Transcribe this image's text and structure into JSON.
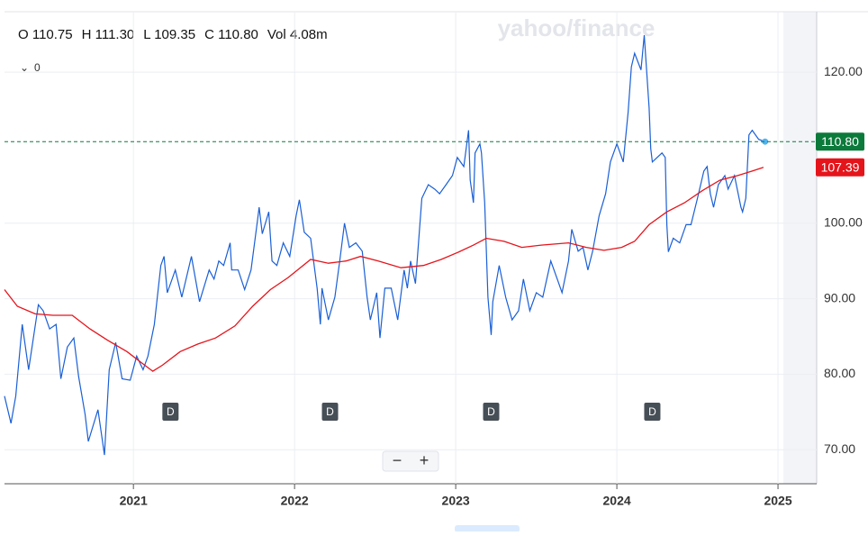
{
  "chart_data": {
    "type": "line",
    "header": [
      "O 110.75",
      "H 111.30",
      "L 109.35",
      "C 110.80",
      "Vol 4.08m"
    ],
    "watermark": "yahoo/finance",
    "indicator_count": "0",
    "controls": [
      "−",
      "+"
    ],
    "xlim": [
      2020.2,
      2025.24
    ],
    "ylim": [
      65.5,
      128
    ],
    "xticks": [
      {
        "value": 2021,
        "label": "2021"
      },
      {
        "value": 2022,
        "label": "2022"
      },
      {
        "value": 2023,
        "label": "2023"
      },
      {
        "value": 2024,
        "label": "2024"
      },
      {
        "value": 2025,
        "label": "2025"
      }
    ],
    "yticks": [
      {
        "value": 70,
        "label": "70.00"
      },
      {
        "value": 80,
        "label": "80.00"
      },
      {
        "value": 90,
        "label": "90.00"
      },
      {
        "value": 100,
        "label": "100.00"
      },
      {
        "value": 120,
        "label": "120.00"
      }
    ],
    "grid": true,
    "series": [
      {
        "color": "#1a5fd6",
        "x": [
          2020.2,
          2020.24,
          2020.27,
          2020.31,
          2020.35,
          2020.41,
          2020.44,
          2020.48,
          2020.52,
          2020.55,
          2020.59,
          2020.63,
          2020.66,
          2020.7,
          2020.72,
          2020.78,
          2020.82,
          2020.85,
          2020.89,
          2020.93,
          2020.98,
          2021.02,
          2021.06,
          2021.09,
          2021.13,
          2021.17,
          2021.19,
          2021.21,
          2021.26,
          2021.3,
          2021.36,
          2021.41,
          2021.47,
          2021.5,
          2021.53,
          2021.56,
          2021.6,
          2021.61,
          2021.65,
          2021.69,
          2021.73,
          2021.77,
          2021.78,
          2021.8,
          2021.84,
          2021.86,
          2021.89,
          2021.93,
          2021.97,
          2022.01,
          2022.03,
          2022.06,
          2022.1,
          2022.14,
          2022.16,
          2022.17,
          2022.21,
          2022.25,
          2022.28,
          2022.31,
          2022.34,
          2022.38,
          2022.42,
          2022.45,
          2022.47,
          2022.51,
          2022.53,
          2022.56,
          2022.6,
          2022.64,
          2022.68,
          2022.7,
          2022.72,
          2022.75,
          2022.79,
          2022.83,
          2022.87,
          2022.9,
          2022.94,
          2022.98,
          2023.01,
          2023.05,
          2023.08,
          2023.09,
          2023.11,
          2023.12,
          2023.15,
          2023.16,
          2023.18,
          2023.2,
          2023.22,
          2023.23,
          2023.27,
          2023.31,
          2023.35,
          2023.39,
          2023.42,
          2023.46,
          2023.5,
          2023.54,
          2023.59,
          2023.63,
          2023.66,
          2023.7,
          2023.72,
          2023.76,
          2023.79,
          2023.82,
          2023.85,
          2023.89,
          2023.93,
          2023.96,
          2024.0,
          2024.04,
          2024.07,
          2024.09,
          2024.11,
          2024.15,
          2024.17,
          2024.2,
          2024.21,
          2024.22,
          2024.28,
          2024.3,
          2024.31,
          2024.32,
          2024.35,
          2024.39,
          2024.43,
          2024.46,
          2024.5,
          2024.54,
          2024.56,
          2024.58,
          2024.6,
          2024.63,
          2024.67,
          2024.69,
          2024.73,
          2024.77,
          2024.78,
          2024.8,
          2024.82,
          2024.84,
          2024.88,
          2024.92
        ],
        "values": [
          77.1,
          73.5,
          77.1,
          86.6,
          80.6,
          89.2,
          88.4,
          86.0,
          86.6,
          79.4,
          83.6,
          84.8,
          79.7,
          74.7,
          71.1,
          75.3,
          69.3,
          80.6,
          84.2,
          79.4,
          79.2,
          82.4,
          80.6,
          82.4,
          86.6,
          94.4,
          95.6,
          90.8,
          93.8,
          90.2,
          95.6,
          89.6,
          93.8,
          92.6,
          95.0,
          94.4,
          97.4,
          93.8,
          93.8,
          91.2,
          93.8,
          100.4,
          102.1,
          98.6,
          101.5,
          95.0,
          94.4,
          97.4,
          95.6,
          101.0,
          103.1,
          98.8,
          98.0,
          91.4,
          86.6,
          91.4,
          87.2,
          90.2,
          95.0,
          100.0,
          96.8,
          97.4,
          96.3,
          90.2,
          87.2,
          90.8,
          84.8,
          91.4,
          91.4,
          87.2,
          93.8,
          91.4,
          95.0,
          92.0,
          103.3,
          105.1,
          104.5,
          103.9,
          105.1,
          106.3,
          108.7,
          107.5,
          112.3,
          105.7,
          102.7,
          109.3,
          110.5,
          109.3,
          102.7,
          90.2,
          85.2,
          89.6,
          94.4,
          90.2,
          87.2,
          88.4,
          92.6,
          88.4,
          90.8,
          90.2,
          95.0,
          92.6,
          90.8,
          95.0,
          99.2,
          96.3,
          96.8,
          93.8,
          96.3,
          101.0,
          103.9,
          108.1,
          110.5,
          108.1,
          114.7,
          120.7,
          122.5,
          120.3,
          124.9,
          115.3,
          109.9,
          108.1,
          109.3,
          108.7,
          99.8,
          96.2,
          98.0,
          97.4,
          99.8,
          99.8,
          103.3,
          106.9,
          107.5,
          103.9,
          102.1,
          105.1,
          106.3,
          104.5,
          106.3,
          102.1,
          101.5,
          103.3,
          111.7,
          112.3,
          111.1,
          110.8
        ]
      },
      {
        "color": "#e5141b",
        "x": [
          2020.2,
          2020.28,
          2020.39,
          2020.5,
          2020.62,
          2020.73,
          2020.84,
          2020.96,
          2021.07,
          2021.12,
          2021.18,
          2021.29,
          2021.4,
          2021.51,
          2021.63,
          2021.74,
          2021.85,
          2021.96,
          2022.1,
          2022.21,
          2022.32,
          2022.41,
          2022.52,
          2022.66,
          2022.8,
          2022.91,
          2023.02,
          2023.11,
          2023.19,
          2023.3,
          2023.41,
          2023.53,
          2023.7,
          2023.81,
          2023.92,
          2024.03,
          2024.11,
          2024.2,
          2024.31,
          2024.42,
          2024.53,
          2024.64,
          2024.75,
          2024.84,
          2024.91
        ],
        "values": [
          91.2,
          89.0,
          88.0,
          87.8,
          87.8,
          86.0,
          84.5,
          83.0,
          81.2,
          80.4,
          81.2,
          83.0,
          84.0,
          84.8,
          86.4,
          89.0,
          91.2,
          92.8,
          95.2,
          94.7,
          95.0,
          95.6,
          95.0,
          94.1,
          94.4,
          95.2,
          96.2,
          97.1,
          98.0,
          97.6,
          96.8,
          97.1,
          97.4,
          96.8,
          96.4,
          96.8,
          97.6,
          99.8,
          101.5,
          102.7,
          104.3,
          105.7,
          106.3,
          106.9,
          107.39
        ]
      }
    ],
    "price_tags": [
      {
        "value": 110.8,
        "label": "110.80",
        "color": "#0b7a3b"
      },
      {
        "value": 107.39,
        "label": "107.39",
        "color": "#e5141b"
      }
    ],
    "dividend_markers": {
      "labels": [
        "D",
        "D",
        "D",
        "D"
      ],
      "x": [
        2021.23,
        2022.22,
        2023.22,
        2024.22
      ]
    }
  }
}
